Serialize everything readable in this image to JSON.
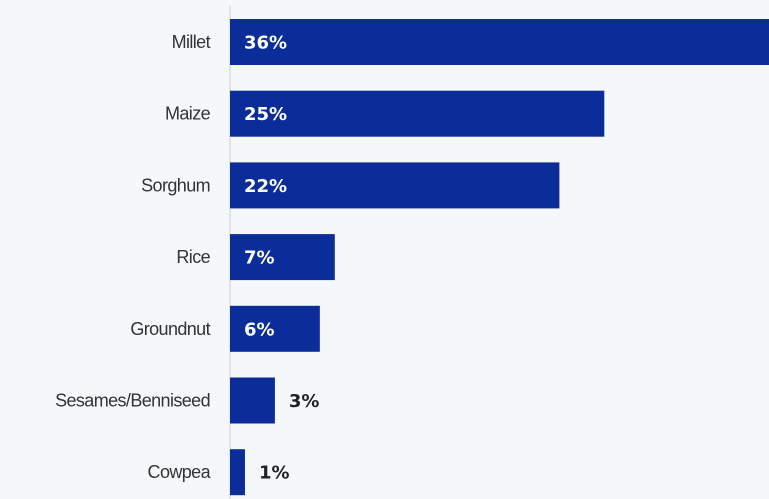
{
  "chart_data": {
    "type": "bar",
    "orientation": "horizontal",
    "categories": [
      "Millet",
      "Maize",
      "Sorghum",
      "Rice",
      "Groundnut",
      "Sesames/Benniseed",
      "Cowpea"
    ],
    "values": [
      36,
      25,
      22,
      7,
      6,
      3,
      1
    ],
    "value_labels": [
      "36%",
      "25%",
      "22%",
      "7%",
      "6%",
      "3%",
      "1%"
    ],
    "xlim": [
      0,
      36
    ],
    "grid": false,
    "legend": "none",
    "colors": {
      "bar": "#0a2d99",
      "label_inside": "#ffffff",
      "label_outside": "#222222",
      "axis": "#cccccc",
      "background": "#f4f8fa"
    }
  }
}
